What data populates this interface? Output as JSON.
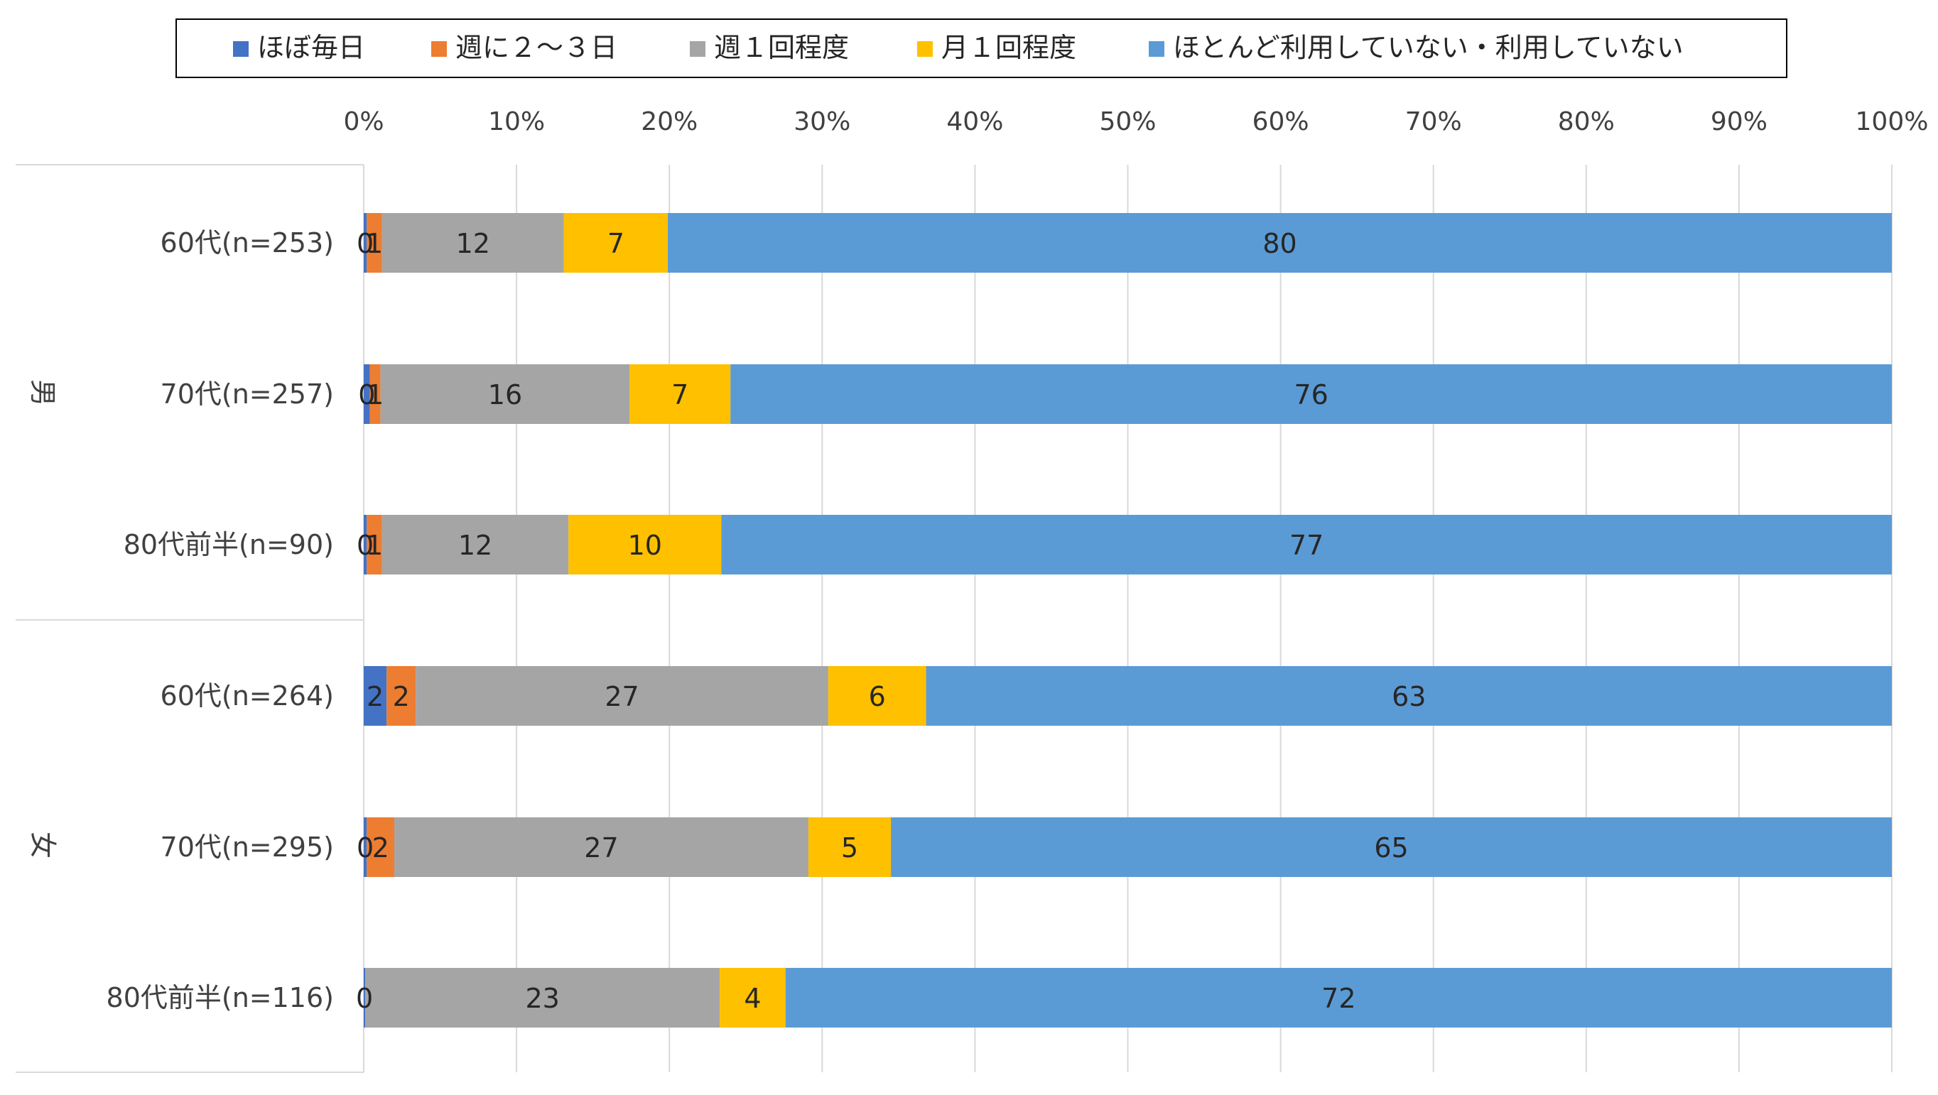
{
  "chart_data": {
    "type": "bar",
    "orientation": "horizontal",
    "stacked": "percent",
    "title": "",
    "xlabel": "",
    "ylabel": "",
    "xlim": [
      0,
      100
    ],
    "x_ticks": [
      "0%",
      "10%",
      "20%",
      "30%",
      "40%",
      "50%",
      "60%",
      "70%",
      "80%",
      "90%",
      "100%"
    ],
    "legend_position": "top",
    "groups": [
      {
        "label": "男",
        "categories": [
          "60代(n=253)",
          "70代(n=257)",
          "80代前半(n=90)"
        ]
      },
      {
        "label": "女",
        "categories": [
          "60代(n=264)",
          "70代(n=295)",
          "80代前半(n=116)"
        ]
      }
    ],
    "categories": [
      "60代(n=253)",
      "70代(n=257)",
      "80代前半(n=90)",
      "60代(n=264)",
      "70代(n=295)",
      "80代前半(n=116)"
    ],
    "series": [
      {
        "name": "ほぼ毎日",
        "color": "#4472C4",
        "values": [
          0.2,
          0.4,
          0.2,
          1.5,
          0.2,
          0.1
        ],
        "labels": [
          "0",
          "0",
          "0",
          "2",
          "0",
          "0"
        ]
      },
      {
        "name": "週に２～３日",
        "color": "#ED7D31",
        "values": [
          1.0,
          0.7,
          1.0,
          1.9,
          1.8,
          0
        ],
        "labels": [
          "1",
          "1",
          "1",
          "2",
          "2",
          ""
        ]
      },
      {
        "name": "週１回程度",
        "color": "#A5A5A5",
        "values": [
          11.9,
          16.3,
          12.2,
          27.0,
          27.1,
          23.2
        ],
        "labels": [
          "12",
          "16",
          "12",
          "27",
          "27",
          "23"
        ]
      },
      {
        "name": "月１回程度",
        "color": "#FFC000",
        "values": [
          6.8,
          6.6,
          10.0,
          6.4,
          5.4,
          4.3
        ],
        "labels": [
          "7",
          "7",
          "10",
          "6",
          "5",
          "4"
        ]
      },
      {
        "name": "ほとんど利用していない・利用していない",
        "color": "#5B9BD5",
        "values": [
          80.1,
          76.0,
          76.6,
          63.2,
          65.5,
          72.4
        ],
        "labels": [
          "80",
          "76",
          "77",
          "63",
          "65",
          "72"
        ]
      }
    ]
  }
}
